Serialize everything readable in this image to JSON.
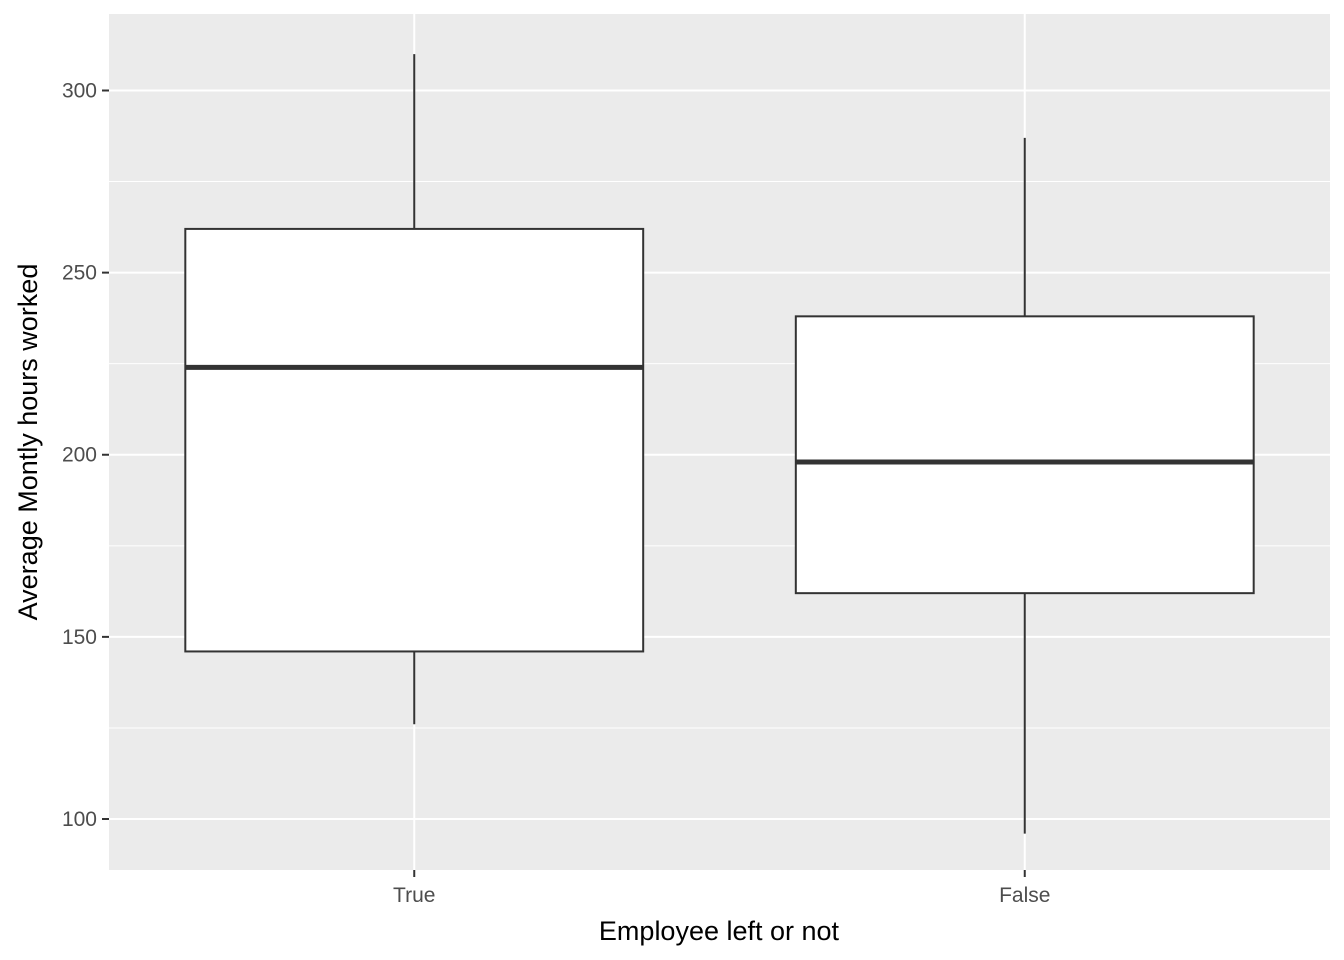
{
  "chart_data": {
    "type": "boxplot",
    "xlabel": "Employee left or not",
    "ylabel": "Average Montly hours worked",
    "ylim": [
      86,
      321
    ],
    "y_ticks": [
      100,
      150,
      200,
      250,
      300
    ],
    "grid": true,
    "categories": [
      "True",
      "False"
    ],
    "boxes": [
      {
        "category": "True",
        "whisker_low": 126,
        "q1": 146,
        "median": 224,
        "q3": 262,
        "whisker_high": 310
      },
      {
        "category": "False",
        "whisker_low": 96,
        "q1": 162,
        "median": 198,
        "q3": 238,
        "whisker_high": 287
      }
    ],
    "colors": {
      "panel": "#ebebeb",
      "grid": "#ffffff",
      "box_fill": "#ffffff",
      "box_line": "#333333"
    }
  }
}
